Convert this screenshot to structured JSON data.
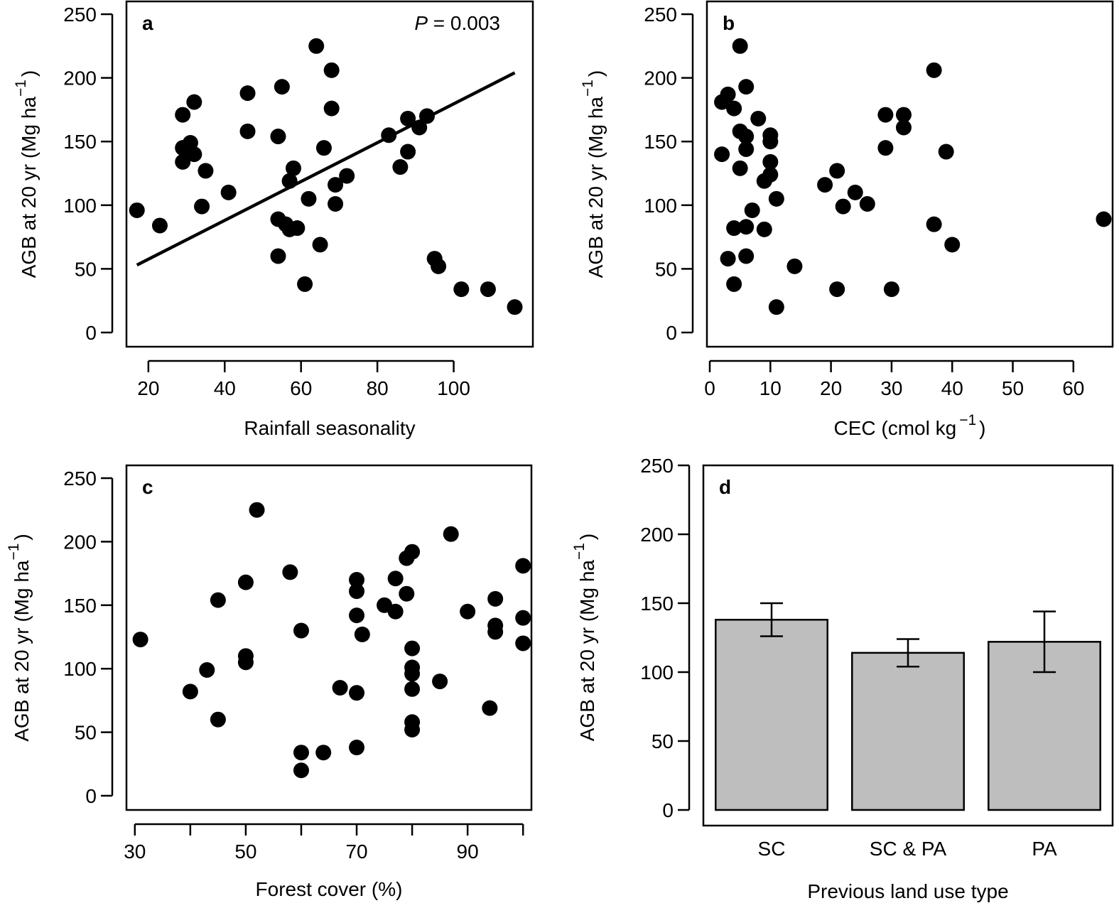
{
  "style": {
    "point_color": "#000000",
    "bar_fill": "#bebebe",
    "line_color": "#000000"
  },
  "chart_data": [
    {
      "panel": "a",
      "type": "scatter",
      "xlabel": "Rainfall seasonality",
      "ylabel_main": "AGB at 20 yr (Mg ha",
      "ylabel_exp": "−1",
      "ylabel_close": ")",
      "xlim": [
        15,
        120
      ],
      "ylim": [
        0,
        250
      ],
      "xticks": [
        20,
        40,
        60,
        80,
        100
      ],
      "yticks": [
        0,
        50,
        100,
        150,
        200,
        250
      ],
      "annotation": {
        "italic": "P",
        "rest": " = 0.003"
      },
      "regression": {
        "x": [
          17,
          116
        ],
        "y": [
          53,
          204
        ]
      },
      "points": [
        [
          17,
          96
        ],
        [
          23,
          84
        ],
        [
          29,
          171
        ],
        [
          29,
          145
        ],
        [
          29,
          134
        ],
        [
          31,
          149
        ],
        [
          32,
          181
        ],
        [
          32,
          140
        ],
        [
          34,
          99
        ],
        [
          35,
          127
        ],
        [
          41,
          110
        ],
        [
          46,
          188
        ],
        [
          46,
          158
        ],
        [
          54,
          154
        ],
        [
          54,
          89
        ],
        [
          54,
          60
        ],
        [
          55,
          193
        ],
        [
          56,
          85
        ],
        [
          57,
          119
        ],
        [
          57,
          81
        ],
        [
          58,
          129
        ],
        [
          59,
          82
        ],
        [
          61,
          38
        ],
        [
          62,
          105
        ],
        [
          64,
          225
        ],
        [
          65,
          69
        ],
        [
          66,
          145
        ],
        [
          68,
          206
        ],
        [
          68,
          176
        ],
        [
          69,
          116
        ],
        [
          69,
          101
        ],
        [
          72,
          123
        ],
        [
          83,
          155
        ],
        [
          86,
          130
        ],
        [
          88,
          168
        ],
        [
          88,
          142
        ],
        [
          91,
          161
        ],
        [
          93,
          170
        ],
        [
          95,
          58
        ],
        [
          96,
          52
        ],
        [
          102,
          34
        ],
        [
          109,
          34
        ],
        [
          116,
          20
        ]
      ]
    },
    {
      "panel": "b",
      "type": "scatter",
      "xlabel_main": "CEC (cmol kg",
      "xlabel_exp": "−1",
      "xlabel_close": ")",
      "ylabel_main": "AGB at 20 yr (Mg ha",
      "ylabel_exp": "−1",
      "ylabel_close": ")",
      "xlim": [
        0,
        66
      ],
      "ylim": [
        0,
        250
      ],
      "xticks": [
        0,
        10,
        20,
        30,
        40,
        50,
        60
      ],
      "yticks": [
        0,
        50,
        100,
        150,
        200,
        250
      ],
      "points": [
        [
          2,
          181
        ],
        [
          2,
          140
        ],
        [
          3,
          187
        ],
        [
          3,
          58
        ],
        [
          4,
          38
        ],
        [
          4,
          176
        ],
        [
          4,
          82
        ],
        [
          5,
          225
        ],
        [
          5,
          158
        ],
        [
          5,
          129
        ],
        [
          6,
          144
        ],
        [
          6,
          154
        ],
        [
          6,
          83
        ],
        [
          6,
          60
        ],
        [
          6,
          193
        ],
        [
          7,
          96
        ],
        [
          8,
          168
        ],
        [
          9,
          81
        ],
        [
          9,
          119
        ],
        [
          10,
          150
        ],
        [
          10,
          134
        ],
        [
          10,
          124
        ],
        [
          10,
          155
        ],
        [
          11,
          105
        ],
        [
          11,
          20
        ],
        [
          14,
          52
        ],
        [
          19,
          116
        ],
        [
          21,
          127
        ],
        [
          21,
          34
        ],
        [
          22,
          99
        ],
        [
          24,
          110
        ],
        [
          26,
          101
        ],
        [
          29,
          171
        ],
        [
          29,
          145
        ],
        [
          30,
          34
        ],
        [
          32,
          171
        ],
        [
          32,
          161
        ],
        [
          37,
          206
        ],
        [
          37,
          85
        ],
        [
          39,
          142
        ],
        [
          40,
          69
        ],
        [
          65,
          89
        ]
      ]
    },
    {
      "panel": "c",
      "type": "scatter",
      "xlabel": "Forest cover (%)",
      "ylabel_main": "AGB at 20 yr (Mg ha",
      "ylabel_exp": "−1",
      "ylabel_close": ")",
      "xlim": [
        29,
        101
      ],
      "ylim": [
        0,
        250
      ],
      "xticks": [
        30,
        40,
        50,
        60,
        70,
        80,
        90,
        100
      ],
      "xtick_labels": [
        "30",
        "",
        "50",
        "",
        "70",
        "",
        "90",
        ""
      ],
      "yticks": [
        0,
        50,
        100,
        150,
        200,
        250
      ],
      "points": [
        [
          31,
          123
        ],
        [
          40,
          82
        ],
        [
          43,
          99
        ],
        [
          45,
          154
        ],
        [
          45,
          60
        ],
        [
          50,
          168
        ],
        [
          50,
          110
        ],
        [
          50,
          105
        ],
        [
          52,
          225
        ],
        [
          58,
          176
        ],
        [
          60,
          130
        ],
        [
          60,
          34
        ],
        [
          60,
          20
        ],
        [
          64,
          34
        ],
        [
          67,
          85
        ],
        [
          70,
          170
        ],
        [
          70,
          161
        ],
        [
          70,
          142
        ],
        [
          70,
          81
        ],
        [
          70,
          38
        ],
        [
          71,
          127
        ],
        [
          75,
          150
        ],
        [
          77,
          171
        ],
        [
          77,
          145
        ],
        [
          79,
          187
        ],
        [
          79,
          159
        ],
        [
          80,
          192
        ],
        [
          80,
          116
        ],
        [
          80,
          101
        ],
        [
          80,
          96
        ],
        [
          80,
          84
        ],
        [
          80,
          58
        ],
        [
          80,
          52
        ],
        [
          85,
          90
        ],
        [
          87,
          206
        ],
        [
          90,
          145
        ],
        [
          94,
          69
        ],
        [
          95,
          155
        ],
        [
          95,
          134
        ],
        [
          95,
          129
        ],
        [
          100,
          181
        ],
        [
          100,
          140
        ],
        [
          100,
          120
        ]
      ]
    },
    {
      "panel": "d",
      "type": "bar",
      "xlabel": "Previous land use type",
      "ylabel_main": "AGB at 20 yr (Mg ha",
      "ylabel_exp": "−1",
      "ylabel_close": ")",
      "ylim": [
        0,
        250
      ],
      "yticks": [
        0,
        50,
        100,
        150,
        200,
        250
      ],
      "categories": [
        "SC",
        "SC & PA",
        "PA"
      ],
      "values": [
        138,
        114,
        122
      ],
      "error_low": [
        126,
        104,
        100
      ],
      "error_high": [
        150,
        124,
        144
      ]
    }
  ]
}
